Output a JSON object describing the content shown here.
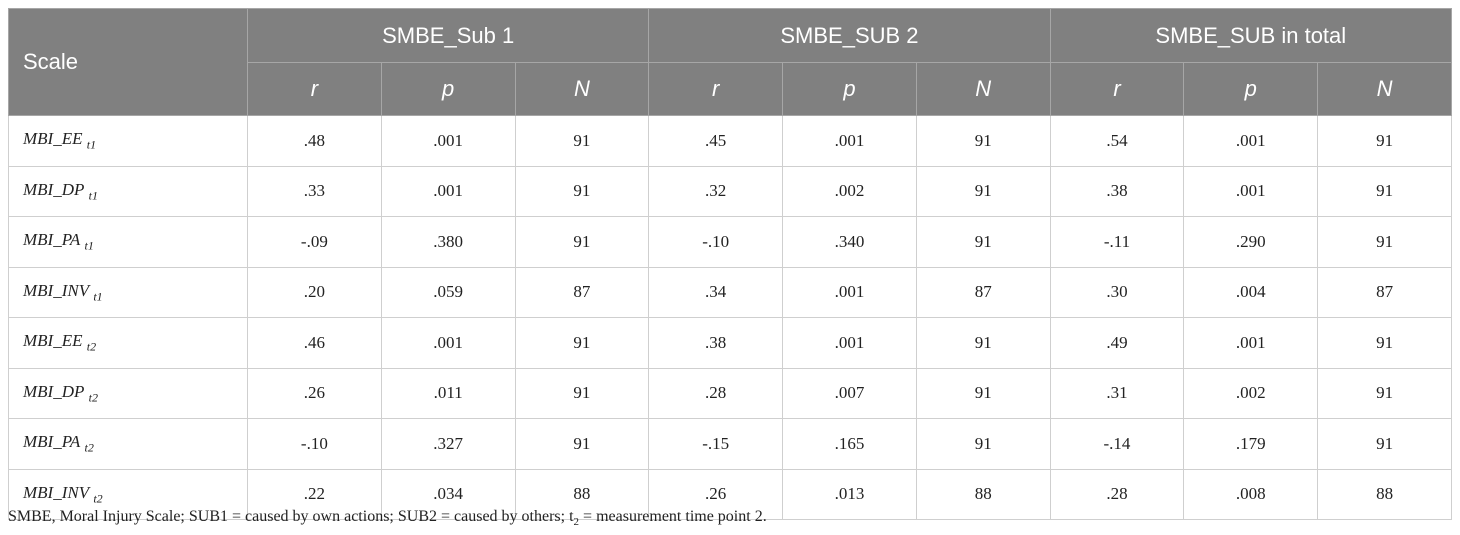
{
  "table": {
    "scale_header": "Scale",
    "groups": [
      {
        "title": "SMBE_Sub 1",
        "columns": [
          "r",
          "p",
          "N"
        ]
      },
      {
        "title": "SMBE_SUB 2",
        "columns": [
          "r",
          "p",
          "N"
        ]
      },
      {
        "title": "SMBE_SUB in total",
        "columns": [
          "r",
          "p",
          "N"
        ]
      }
    ],
    "rows": [
      {
        "name": "MBI_EE",
        "sub": "t1",
        "values": [
          ".48",
          ".001",
          "91",
          ".45",
          ".001",
          "91",
          ".54",
          ".001",
          "91"
        ]
      },
      {
        "name": "MBI_DP",
        "sub": "t1",
        "values": [
          ".33",
          ".001",
          "91",
          ".32",
          ".002",
          "91",
          ".38",
          ".001",
          "91"
        ]
      },
      {
        "name": "MBI_PA",
        "sub": "t1",
        "values": [
          "-.09",
          ".380",
          "91",
          "-.10",
          ".340",
          "91",
          "-.11",
          ".290",
          "91"
        ]
      },
      {
        "name": "MBI_INV",
        "sub": "t1",
        "values": [
          ".20",
          ".059",
          "87",
          ".34",
          ".001",
          "87",
          ".30",
          ".004",
          "87"
        ]
      },
      {
        "name": "MBI_EE",
        "sub": "t2",
        "values": [
          ".46",
          ".001",
          "91",
          ".38",
          ".001",
          "91",
          ".49",
          ".001",
          "91"
        ]
      },
      {
        "name": "MBI_DP",
        "sub": "t2",
        "values": [
          ".26",
          ".011",
          "91",
          ".28",
          ".007",
          "91",
          ".31",
          ".002",
          "91"
        ]
      },
      {
        "name": "MBI_PA",
        "sub": "t2",
        "values": [
          "-.10",
          ".327",
          "91",
          "-.15",
          ".165",
          "91",
          "-.14",
          ".179",
          "91"
        ]
      },
      {
        "name": "MBI_INV",
        "sub": "t2",
        "values": [
          ".22",
          ".034",
          "88",
          ".26",
          ".013",
          "88",
          ".28",
          ".008",
          "88"
        ]
      }
    ]
  },
  "footnote": {
    "before": "SMBE, Moral Injury Scale; SUB1 = caused by own actions; SUB2 = caused by others; t",
    "sub": "2",
    "after": " = measurement time point 2."
  }
}
